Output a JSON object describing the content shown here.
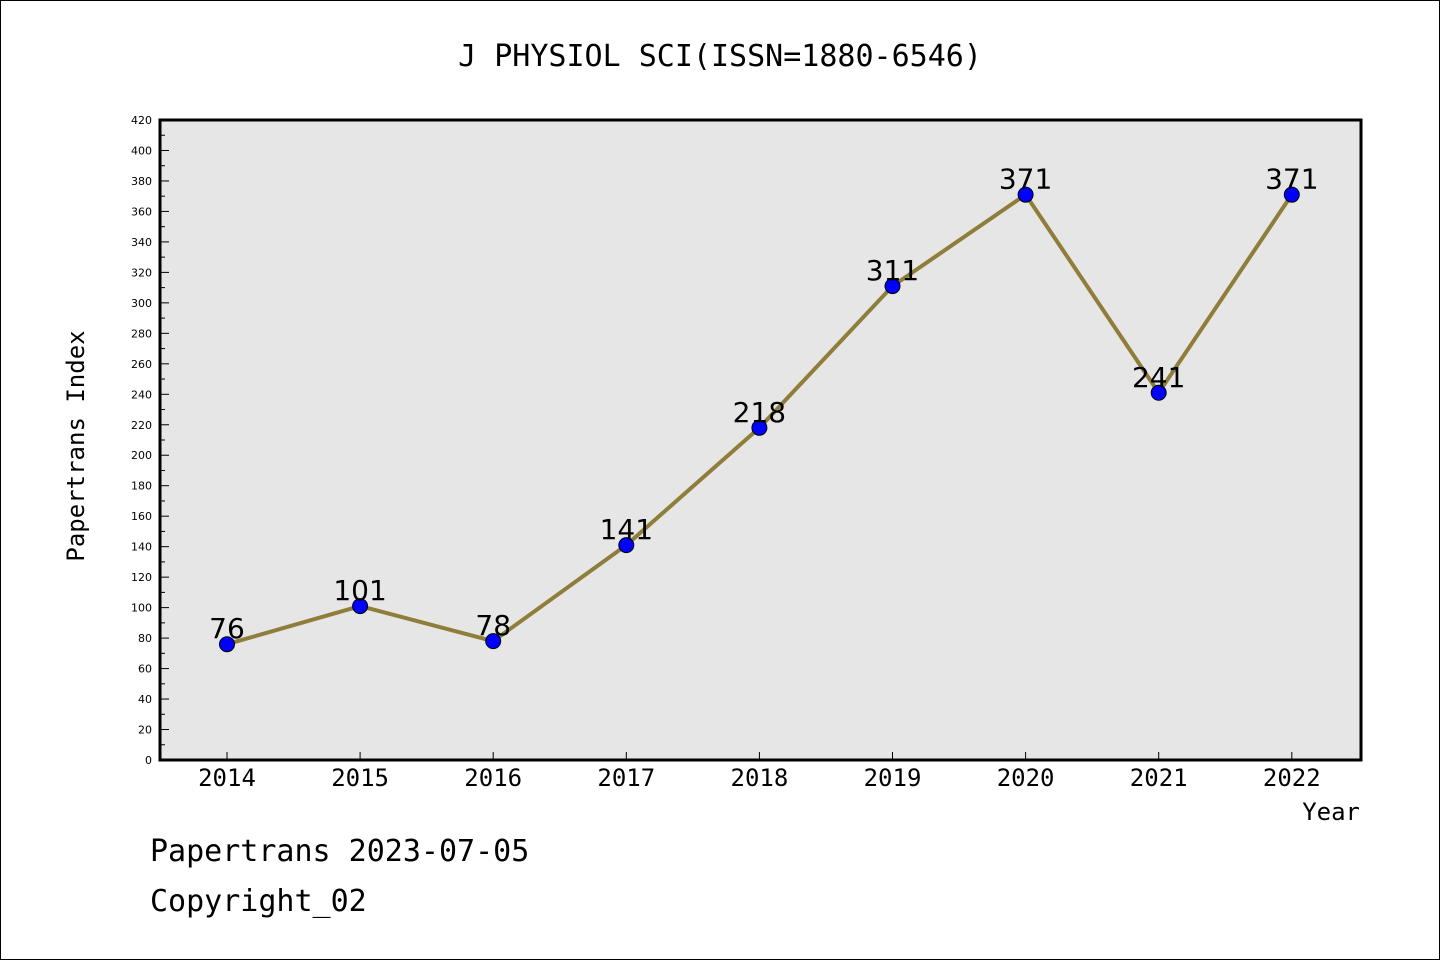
{
  "chart_data": {
    "type": "line",
    "title": "J PHYSIOL SCI(ISSN=1880-6546)",
    "xlabel": "Year",
    "ylabel": "Papertrans Index",
    "categories": [
      "2014",
      "2015",
      "2016",
      "2017",
      "2018",
      "2019",
      "2020",
      "2021",
      "2022"
    ],
    "series": [
      {
        "values": [
          76,
          101,
          78,
          141,
          218,
          311,
          371,
          241,
          371
        ]
      }
    ],
    "data_labels": [
      "76",
      "101",
      "78",
      "141",
      "218",
      "311",
      "371",
      "241",
      "371"
    ],
    "ylim": [
      0,
      420
    ],
    "y_ticks": [
      0,
      20,
      40,
      60,
      80,
      100,
      120,
      140,
      160,
      180,
      200,
      220,
      240,
      260,
      280,
      300,
      320,
      340,
      360,
      380,
      400,
      420
    ],
    "grid": false,
    "legend": "none",
    "colors": {
      "line": "#8f7d3a",
      "marker": "#0000ff",
      "plot_background": "#e6e6e6"
    }
  },
  "footer": {
    "line1": "Papertrans 2023-07-05",
    "line2": "Copyright_02"
  }
}
